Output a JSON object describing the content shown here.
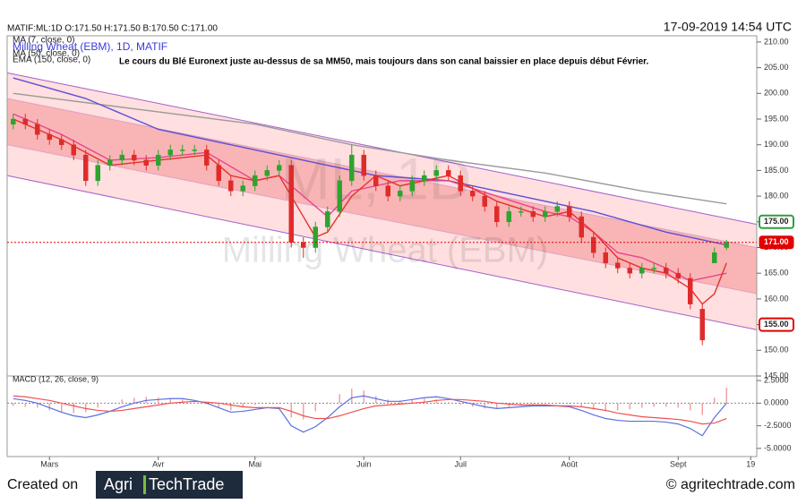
{
  "header": {
    "symbol_info": "MATIF:ML:1D O:171.50 H:171.50 B:170.50 C:171.00",
    "timestamp": "17-09-2019 14:54 UTC"
  },
  "watermark": [
    "ML, 1D",
    "Milling Wheat (EBM)"
  ],
  "chart_data": [
    {
      "type": "candlestick",
      "title": "Milling Wheat (EBM), 1D, MATIF",
      "annotation": "Le cours du Blé Euronext juste au-dessus de sa MM50, mais toujours dans son canal baissier en place depuis début Février.",
      "categories": [
        null,
        null,
        null,
        "Mars",
        null,
        null,
        null,
        null,
        null,
        null,
        null,
        null,
        "Avr",
        null,
        null,
        null,
        null,
        null,
        null,
        null,
        "Mai",
        null,
        null,
        null,
        null,
        null,
        null,
        null,
        null,
        "Juin",
        null,
        null,
        null,
        null,
        null,
        null,
        null,
        "Juil",
        null,
        null,
        null,
        null,
        null,
        null,
        null,
        null,
        "Août",
        null,
        null,
        null,
        null,
        null,
        null,
        null,
        null,
        "Sept",
        null,
        null,
        null,
        null,
        null,
        "19"
      ],
      "open": [
        194,
        195,
        194,
        192,
        191,
        190,
        188,
        183,
        186,
        187,
        188,
        187,
        186,
        188,
        189,
        189,
        189,
        186,
        183,
        181,
        182,
        184,
        185,
        186,
        171,
        170,
        174,
        177,
        183,
        188,
        184,
        182,
        180,
        181,
        183,
        184,
        185,
        184,
        181,
        180,
        178,
        175,
        177,
        177,
        176,
        177,
        178,
        176,
        172,
        169,
        167,
        166,
        165,
        166,
        166,
        165,
        164,
        158,
        167,
        170,
        null,
        null
      ],
      "high": [
        196,
        196,
        195,
        193,
        192,
        191,
        189,
        187,
        188,
        189,
        189,
        188,
        189,
        190,
        190,
        190,
        190,
        187,
        184,
        183,
        185,
        186,
        187,
        187,
        172,
        175,
        178,
        184,
        190,
        189,
        185,
        183,
        182,
        184,
        185,
        186,
        186,
        185,
        182,
        181,
        179,
        178,
        178,
        178,
        178,
        179,
        179,
        177,
        173,
        170,
        168,
        167,
        167,
        167,
        167,
        166,
        165,
        159,
        170,
        171.5,
        null,
        null
      ],
      "low": [
        193,
        193,
        191,
        190,
        189,
        187,
        182,
        182,
        185,
        186,
        186,
        185,
        185,
        187,
        188,
        188,
        185,
        182,
        180,
        180,
        181,
        183,
        184,
        170,
        168,
        169,
        173,
        176,
        182,
        183,
        181,
        179,
        179,
        180,
        182,
        183,
        183,
        180,
        179,
        177,
        174,
        174,
        176,
        175,
        175,
        176,
        175,
        171,
        168,
        166,
        165,
        164,
        164,
        165,
        164,
        163,
        158,
        151,
        167,
        169.5,
        null,
        null
      ],
      "close": [
        195,
        194,
        192,
        191,
        190,
        188,
        183,
        186,
        187,
        188,
        187,
        186,
        188,
        189,
        189,
        189,
        186,
        183,
        181,
        182,
        184,
        185,
        186,
        171,
        170,
        174,
        177,
        183,
        188,
        184,
        182,
        180,
        181,
        183,
        184,
        185,
        184,
        181,
        180,
        178,
        175,
        177,
        177,
        176,
        177,
        178,
        176,
        172,
        169,
        167,
        166,
        165,
        166,
        166,
        165,
        164,
        159,
        152,
        169,
        171,
        null,
        null
      ],
      "up_color": "#2fa32f",
      "down_color": "#e02b2b",
      "lines": [
        {
          "name": "EMA (150, close, 0)",
          "color": "#9a9a9a",
          "x": [
            0,
            10,
            20,
            28,
            36,
            44,
            52,
            59
          ],
          "values": [
            200,
            197,
            194,
            190,
            187,
            184.5,
            181,
            178.5
          ]
        },
        {
          "name": "MA (50, close, 0)",
          "color": "#5b4fd6",
          "x": [
            0,
            6,
            12,
            18,
            24,
            30,
            36,
            42,
            48,
            54,
            58,
            59
          ],
          "values": [
            203,
            199,
            193,
            190,
            187,
            184,
            183,
            180,
            177,
            173,
            171,
            170.5
          ]
        },
        {
          "color": "#e8458f",
          "x": [
            0,
            4,
            8,
            12,
            16,
            20,
            22,
            24,
            26,
            28,
            32,
            36,
            40,
            44,
            46,
            48,
            50,
            52,
            54,
            56,
            58,
            59
          ],
          "values": [
            196,
            192,
            187,
            187.5,
            188.5,
            183,
            184,
            180,
            176,
            181,
            183,
            183,
            180,
            177,
            176,
            173,
            169,
            168,
            166,
            163.5,
            164.5,
            165
          ]
        },
        {
          "name": "MA (7, close, 0)",
          "color": "#e8302a",
          "x": [
            0,
            4,
            8,
            12,
            16,
            18,
            20,
            22,
            24,
            25,
            26,
            28,
            30,
            32,
            36,
            40,
            44,
            46,
            48,
            50,
            52,
            54,
            56,
            57,
            58,
            59
          ],
          "values": [
            195,
            191,
            186,
            187,
            188,
            184,
            183,
            184,
            176,
            172,
            173,
            180,
            184,
            182,
            184,
            179,
            176,
            177,
            173,
            168,
            166,
            165,
            162,
            159,
            161,
            167
          ]
        }
      ],
      "channel": {
        "edge_color": "#9b4fc9",
        "outer_fill": "#ffc9c9",
        "inner_fill": "#f59a9a",
        "lines": [
          {
            "values": [
              204,
              174.5
            ]
          },
          {
            "values": [
              199,
              170
            ]
          },
          {
            "values": [
              190,
              161
            ]
          },
          {
            "values": [
              184,
              154
            ]
          }
        ]
      },
      "price_markers": [
        {
          "value": 175,
          "label": "175.00",
          "color": "#2e9e3e",
          "style": "outline"
        },
        {
          "value": 171,
          "label": "171.00",
          "color": "#e00000",
          "style": "filled"
        },
        {
          "value": 155,
          "label": "155.00",
          "color": "#e00000",
          "style": "outline"
        }
      ],
      "ylim": [
        145,
        211.2
      ],
      "yticks": [
        {
          "value": 145,
          "label": "145.00"
        },
        {
          "value": 150,
          "label": "150.00"
        },
        {
          "value": 155,
          "label": "155.00"
        },
        {
          "value": 160,
          "label": "160.00"
        },
        {
          "value": 165,
          "label": "165.00"
        },
        {
          "value": 170,
          "label": "170.00"
        },
        {
          "value": 175,
          "label": "175.00"
        },
        {
          "value": 180,
          "label": "180.00"
        },
        {
          "value": 185,
          "label": "185.00"
        },
        {
          "value": 190,
          "label": "190.00"
        },
        {
          "value": 195,
          "label": "195.00"
        },
        {
          "value": 200,
          "label": "200.00"
        },
        {
          "value": 205,
          "label": "205.00"
        },
        {
          "value": 210,
          "label": "210.00"
        }
      ]
    },
    {
      "type": "macd",
      "title": "MACD (12, 26, close, 9)",
      "series": [
        {
          "color": "#5a6fe0",
          "values": [
            0.5,
            0.3,
            0,
            -0.5,
            -1,
            -1.4,
            -1.6,
            -1.3,
            -0.9,
            -0.4,
            0,
            0.3,
            0.4,
            0.5,
            0.5,
            0.3,
            0,
            -0.5,
            -1,
            -0.9,
            -0.7,
            -0.5,
            -0.6,
            -2.5,
            -3.2,
            -2.6,
            -1.6,
            -0.4,
            0.6,
            0.8,
            0.5,
            0.2,
            0.2,
            0.4,
            0.6,
            0.7,
            0.5,
            0.2,
            -0.1,
            -0.4,
            -0.6,
            -0.5,
            -0.4,
            -0.3,
            -0.3,
            -0.3,
            -0.4,
            -0.8,
            -1.3,
            -1.7,
            -1.9,
            -2,
            -2,
            -2,
            -2.1,
            -2.3,
            -2.8,
            -3.6,
            -1.6,
            0,
            null,
            null
          ]
        },
        {
          "color": "#f05050",
          "values": [
            0.8,
            0.7,
            0.5,
            0.3,
            0,
            -0.3,
            -0.6,
            -0.8,
            -0.9,
            -0.8,
            -0.6,
            -0.4,
            -0.2,
            0,
            0.1,
            0.2,
            0.1,
            0,
            -0.2,
            -0.4,
            -0.5,
            -0.5,
            -0.5,
            -0.9,
            -1.4,
            -1.7,
            -1.7,
            -1.4,
            -1,
            -0.6,
            -0.3,
            -0.2,
            -0.1,
            0,
            0.1,
            0.3,
            0.4,
            0.4,
            0.3,
            0.2,
            0,
            -0.1,
            -0.2,
            -0.2,
            -0.2,
            -0.3,
            -0.3,
            -0.4,
            -0.6,
            -0.8,
            -1.1,
            -1.3,
            -1.5,
            -1.6,
            -1.7,
            -1.8,
            -2,
            -2.3,
            -2.2,
            -1.7,
            null,
            null
          ]
        }
      ],
      "histogram": {
        "color": "#f4a0a0",
        "values": [
          -0.3,
          -0.4,
          -0.5,
          -0.8,
          -1,
          -1.1,
          -1,
          -0.5,
          0,
          0.4,
          0.6,
          0.7,
          0.6,
          0.5,
          0.4,
          0.1,
          -0.1,
          -0.5,
          -0.8,
          -0.5,
          -0.2,
          0,
          -0.1,
          -1.6,
          -1.8,
          -0.9,
          0.1,
          1,
          1.6,
          1.4,
          0.8,
          0.4,
          0.3,
          0.4,
          0.5,
          0.4,
          0.1,
          -0.2,
          -0.4,
          -0.6,
          -0.6,
          -0.4,
          -0.2,
          -0.1,
          -0.1,
          0,
          -0.1,
          -0.4,
          -0.7,
          -0.9,
          -0.8,
          -0.7,
          -0.5,
          -0.4,
          -0.4,
          -0.5,
          -0.8,
          -1.3,
          0.6,
          1.7,
          null,
          null
        ]
      },
      "ylim": [
        -5.9,
        3.0
      ],
      "yticks": [
        {
          "value": 2.5,
          "label": "2.5000"
        },
        {
          "value": 0,
          "label": "0.0000"
        },
        {
          "value": -2.5,
          "label": "-2.5000"
        },
        {
          "value": -5,
          "label": "-5.0000"
        }
      ]
    }
  ],
  "footer": {
    "created": "Created on",
    "logo_1": "Agri",
    "logo_2": "TechTrade",
    "copyright": "© agritechtrade.com"
  }
}
